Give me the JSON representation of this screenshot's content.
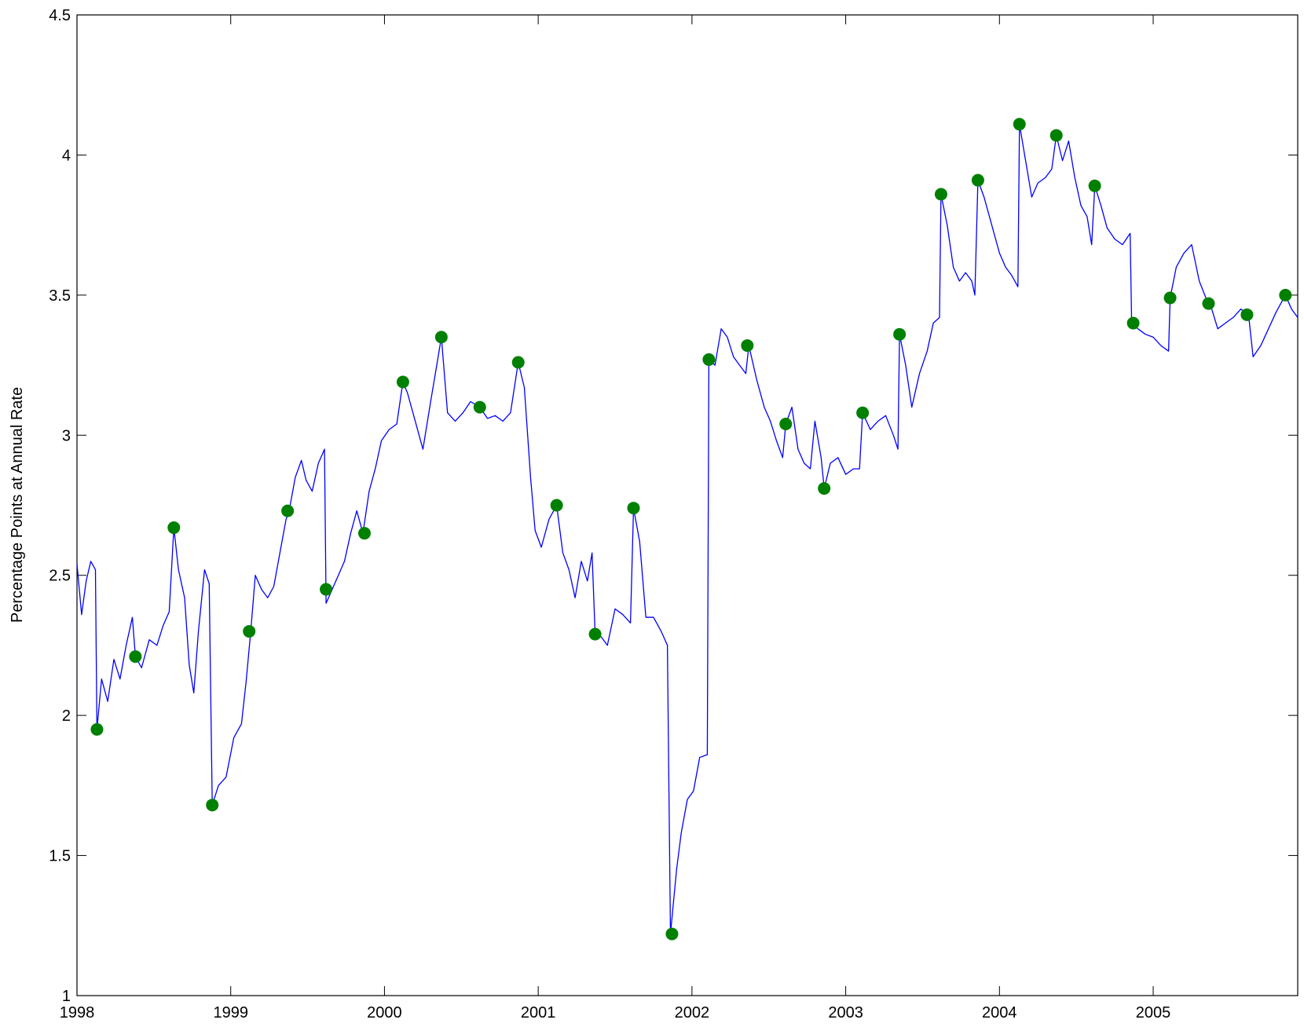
{
  "chart_data": {
    "type": "line",
    "title": "",
    "xlabel": "",
    "ylabel": "Percentage Points at Annual Rate",
    "xlim": [
      1998.0,
      2005.94
    ],
    "ylim": [
      1,
      4.5
    ],
    "x_ticks": [
      1998,
      1999,
      2000,
      2001,
      2002,
      2003,
      2004,
      2005
    ],
    "x_tick_labels": [
      "1998",
      "1999",
      "2000",
      "2001",
      "2002",
      "2003",
      "2004",
      "2005"
    ],
    "y_ticks": [
      1,
      1.5,
      2,
      2.5,
      3,
      3.5,
      4,
      4.5
    ],
    "y_tick_labels": [
      "1",
      "1.5",
      "2",
      "2.5",
      "3",
      "3.5",
      "4",
      "4.5"
    ],
    "grid": false,
    "series": [
      {
        "style": "line",
        "color": "#0000ff",
        "points": [
          [
            1998.0,
            2.54
          ],
          [
            1998.03,
            2.36
          ],
          [
            1998.06,
            2.48
          ],
          [
            1998.09,
            2.55
          ],
          [
            1998.12,
            2.52
          ],
          [
            1998.13,
            1.95
          ],
          [
            1998.16,
            2.13
          ],
          [
            1998.2,
            2.05
          ],
          [
            1998.24,
            2.2
          ],
          [
            1998.28,
            2.13
          ],
          [
            1998.32,
            2.25
          ],
          [
            1998.36,
            2.35
          ],
          [
            1998.38,
            2.21
          ],
          [
            1998.42,
            2.17
          ],
          [
            1998.47,
            2.27
          ],
          [
            1998.52,
            2.25
          ],
          [
            1998.56,
            2.32
          ],
          [
            1998.6,
            2.37
          ],
          [
            1998.63,
            2.67
          ],
          [
            1998.66,
            2.52
          ],
          [
            1998.7,
            2.42
          ],
          [
            1998.73,
            2.18
          ],
          [
            1998.76,
            2.08
          ],
          [
            1998.79,
            2.3
          ],
          [
            1998.83,
            2.52
          ],
          [
            1998.86,
            2.47
          ],
          [
            1998.88,
            1.68
          ],
          [
            1998.92,
            1.75
          ],
          [
            1998.97,
            1.78
          ],
          [
            1999.02,
            1.92
          ],
          [
            1999.07,
            1.97
          ],
          [
            1999.1,
            2.12
          ],
          [
            1999.13,
            2.3
          ],
          [
            1999.16,
            2.5
          ],
          [
            1999.2,
            2.45
          ],
          [
            1999.24,
            2.42
          ],
          [
            1999.28,
            2.46
          ],
          [
            1999.32,
            2.58
          ],
          [
            1999.36,
            2.7
          ],
          [
            1999.38,
            2.73
          ],
          [
            1999.42,
            2.85
          ],
          [
            1999.46,
            2.91
          ],
          [
            1999.49,
            2.84
          ],
          [
            1999.53,
            2.8
          ],
          [
            1999.57,
            2.9
          ],
          [
            1999.61,
            2.95
          ],
          [
            1999.62,
            2.4
          ],
          [
            1999.66,
            2.45
          ],
          [
            1999.7,
            2.5
          ],
          [
            1999.74,
            2.55
          ],
          [
            1999.78,
            2.65
          ],
          [
            1999.82,
            2.73
          ],
          [
            1999.86,
            2.65
          ],
          [
            1999.9,
            2.8
          ],
          [
            1999.94,
            2.88
          ],
          [
            1999.98,
            2.98
          ],
          [
            2000.03,
            3.02
          ],
          [
            2000.08,
            3.04
          ],
          [
            2000.12,
            3.19
          ],
          [
            2000.15,
            3.15
          ],
          [
            2000.2,
            3.05
          ],
          [
            2000.25,
            2.95
          ],
          [
            2000.3,
            3.12
          ],
          [
            2000.34,
            3.25
          ],
          [
            2000.37,
            3.35
          ],
          [
            2000.41,
            3.08
          ],
          [
            2000.46,
            3.05
          ],
          [
            2000.51,
            3.08
          ],
          [
            2000.56,
            3.12
          ],
          [
            2000.62,
            3.1
          ],
          [
            2000.67,
            3.06
          ],
          [
            2000.72,
            3.07
          ],
          [
            2000.77,
            3.05
          ],
          [
            2000.82,
            3.08
          ],
          [
            2000.87,
            3.26
          ],
          [
            2000.91,
            3.17
          ],
          [
            2000.95,
            2.85
          ],
          [
            2000.98,
            2.66
          ],
          [
            2001.02,
            2.6
          ],
          [
            2001.07,
            2.7
          ],
          [
            2001.12,
            2.75
          ],
          [
            2001.16,
            2.58
          ],
          [
            2001.2,
            2.52
          ],
          [
            2001.24,
            2.42
          ],
          [
            2001.28,
            2.55
          ],
          [
            2001.32,
            2.48
          ],
          [
            2001.35,
            2.58
          ],
          [
            2001.37,
            2.29
          ],
          [
            2001.41,
            2.28
          ],
          [
            2001.45,
            2.25
          ],
          [
            2001.5,
            2.38
          ],
          [
            2001.55,
            2.36
          ],
          [
            2001.6,
            2.33
          ],
          [
            2001.62,
            2.74
          ],
          [
            2001.66,
            2.62
          ],
          [
            2001.7,
            2.35
          ],
          [
            2001.75,
            2.35
          ],
          [
            2001.8,
            2.3
          ],
          [
            2001.84,
            2.25
          ],
          [
            2001.86,
            1.22
          ],
          [
            2001.9,
            1.45
          ],
          [
            2001.93,
            1.58
          ],
          [
            2001.97,
            1.7
          ],
          [
            2002.01,
            1.73
          ],
          [
            2002.05,
            1.85
          ],
          [
            2002.1,
            1.86
          ],
          [
            2002.11,
            3.27
          ],
          [
            2002.15,
            3.25
          ],
          [
            2002.19,
            3.38
          ],
          [
            2002.23,
            3.35
          ],
          [
            2002.27,
            3.28
          ],
          [
            2002.31,
            3.25
          ],
          [
            2002.35,
            3.22
          ],
          [
            2002.37,
            3.32
          ],
          [
            2002.42,
            3.2
          ],
          [
            2002.47,
            3.1
          ],
          [
            2002.51,
            3.05
          ],
          [
            2002.55,
            2.98
          ],
          [
            2002.59,
            2.92
          ],
          [
            2002.61,
            3.04
          ],
          [
            2002.65,
            3.1
          ],
          [
            2002.69,
            2.95
          ],
          [
            2002.73,
            2.9
          ],
          [
            2002.77,
            2.88
          ],
          [
            2002.8,
            3.05
          ],
          [
            2002.84,
            2.92
          ],
          [
            2002.86,
            2.81
          ],
          [
            2002.9,
            2.9
          ],
          [
            2002.95,
            2.92
          ],
          [
            2003.0,
            2.86
          ],
          [
            2003.05,
            2.88
          ],
          [
            2003.09,
            2.88
          ],
          [
            2003.11,
            3.08
          ],
          [
            2003.16,
            3.02
          ],
          [
            2003.21,
            3.05
          ],
          [
            2003.26,
            3.07
          ],
          [
            2003.31,
            3.0
          ],
          [
            2003.34,
            2.95
          ],
          [
            2003.35,
            3.36
          ],
          [
            2003.39,
            3.25
          ],
          [
            2003.43,
            3.1
          ],
          [
            2003.48,
            3.22
          ],
          [
            2003.53,
            3.3
          ],
          [
            2003.57,
            3.4
          ],
          [
            2003.61,
            3.42
          ],
          [
            2003.62,
            3.86
          ],
          [
            2003.66,
            3.75
          ],
          [
            2003.7,
            3.6
          ],
          [
            2003.74,
            3.55
          ],
          [
            2003.78,
            3.58
          ],
          [
            2003.82,
            3.55
          ],
          [
            2003.84,
            3.5
          ],
          [
            2003.86,
            3.91
          ],
          [
            2003.9,
            3.85
          ],
          [
            2003.95,
            3.75
          ],
          [
            2004.0,
            3.65
          ],
          [
            2004.04,
            3.6
          ],
          [
            2004.08,
            3.57
          ],
          [
            2004.12,
            3.53
          ],
          [
            2004.13,
            4.11
          ],
          [
            2004.17,
            3.98
          ],
          [
            2004.21,
            3.85
          ],
          [
            2004.25,
            3.9
          ],
          [
            2004.3,
            3.92
          ],
          [
            2004.34,
            3.95
          ],
          [
            2004.37,
            4.07
          ],
          [
            2004.41,
            3.98
          ],
          [
            2004.45,
            4.05
          ],
          [
            2004.49,
            3.92
          ],
          [
            2004.53,
            3.82
          ],
          [
            2004.57,
            3.78
          ],
          [
            2004.6,
            3.68
          ],
          [
            2004.62,
            3.89
          ],
          [
            2004.66,
            3.82
          ],
          [
            2004.7,
            3.74
          ],
          [
            2004.75,
            3.7
          ],
          [
            2004.8,
            3.68
          ],
          [
            2004.85,
            3.72
          ],
          [
            2004.86,
            3.4
          ],
          [
            2004.9,
            3.38
          ],
          [
            2004.95,
            3.36
          ],
          [
            2005.0,
            3.35
          ],
          [
            2005.05,
            3.32
          ],
          [
            2005.1,
            3.3
          ],
          [
            2005.11,
            3.49
          ],
          [
            2005.15,
            3.6
          ],
          [
            2005.2,
            3.65
          ],
          [
            2005.25,
            3.68
          ],
          [
            2005.3,
            3.55
          ],
          [
            2005.35,
            3.48
          ],
          [
            2005.37,
            3.47
          ],
          [
            2005.42,
            3.38
          ],
          [
            2005.47,
            3.4
          ],
          [
            2005.52,
            3.42
          ],
          [
            2005.57,
            3.45
          ],
          [
            2005.62,
            3.43
          ],
          [
            2005.65,
            3.28
          ],
          [
            2005.7,
            3.32
          ],
          [
            2005.75,
            3.38
          ],
          [
            2005.8,
            3.44
          ],
          [
            2005.86,
            3.5
          ],
          [
            2005.9,
            3.45
          ],
          [
            2005.94,
            3.42
          ]
        ]
      },
      {
        "style": "markers",
        "color": "#008000",
        "points": [
          [
            1998.13,
            1.95
          ],
          [
            1998.38,
            2.21
          ],
          [
            1998.63,
            2.67
          ],
          [
            1998.88,
            1.68
          ],
          [
            1999.12,
            2.3
          ],
          [
            1999.37,
            2.73
          ],
          [
            1999.62,
            2.45
          ],
          [
            1999.87,
            2.65
          ],
          [
            2000.12,
            3.19
          ],
          [
            2000.37,
            3.35
          ],
          [
            2000.62,
            3.1
          ],
          [
            2000.87,
            3.26
          ],
          [
            2001.12,
            2.75
          ],
          [
            2001.37,
            2.29
          ],
          [
            2001.62,
            2.74
          ],
          [
            2001.87,
            1.22
          ],
          [
            2002.11,
            3.27
          ],
          [
            2002.36,
            3.32
          ],
          [
            2002.61,
            3.04
          ],
          [
            2002.86,
            2.81
          ],
          [
            2003.11,
            3.08
          ],
          [
            2003.35,
            3.36
          ],
          [
            2003.62,
            3.86
          ],
          [
            2003.86,
            3.91
          ],
          [
            2004.13,
            4.11
          ],
          [
            2004.37,
            4.07
          ],
          [
            2004.62,
            3.89
          ],
          [
            2004.87,
            3.4
          ],
          [
            2005.11,
            3.49
          ],
          [
            2005.36,
            3.47
          ],
          [
            2005.61,
            3.43
          ],
          [
            2005.86,
            3.5
          ]
        ]
      }
    ]
  }
}
